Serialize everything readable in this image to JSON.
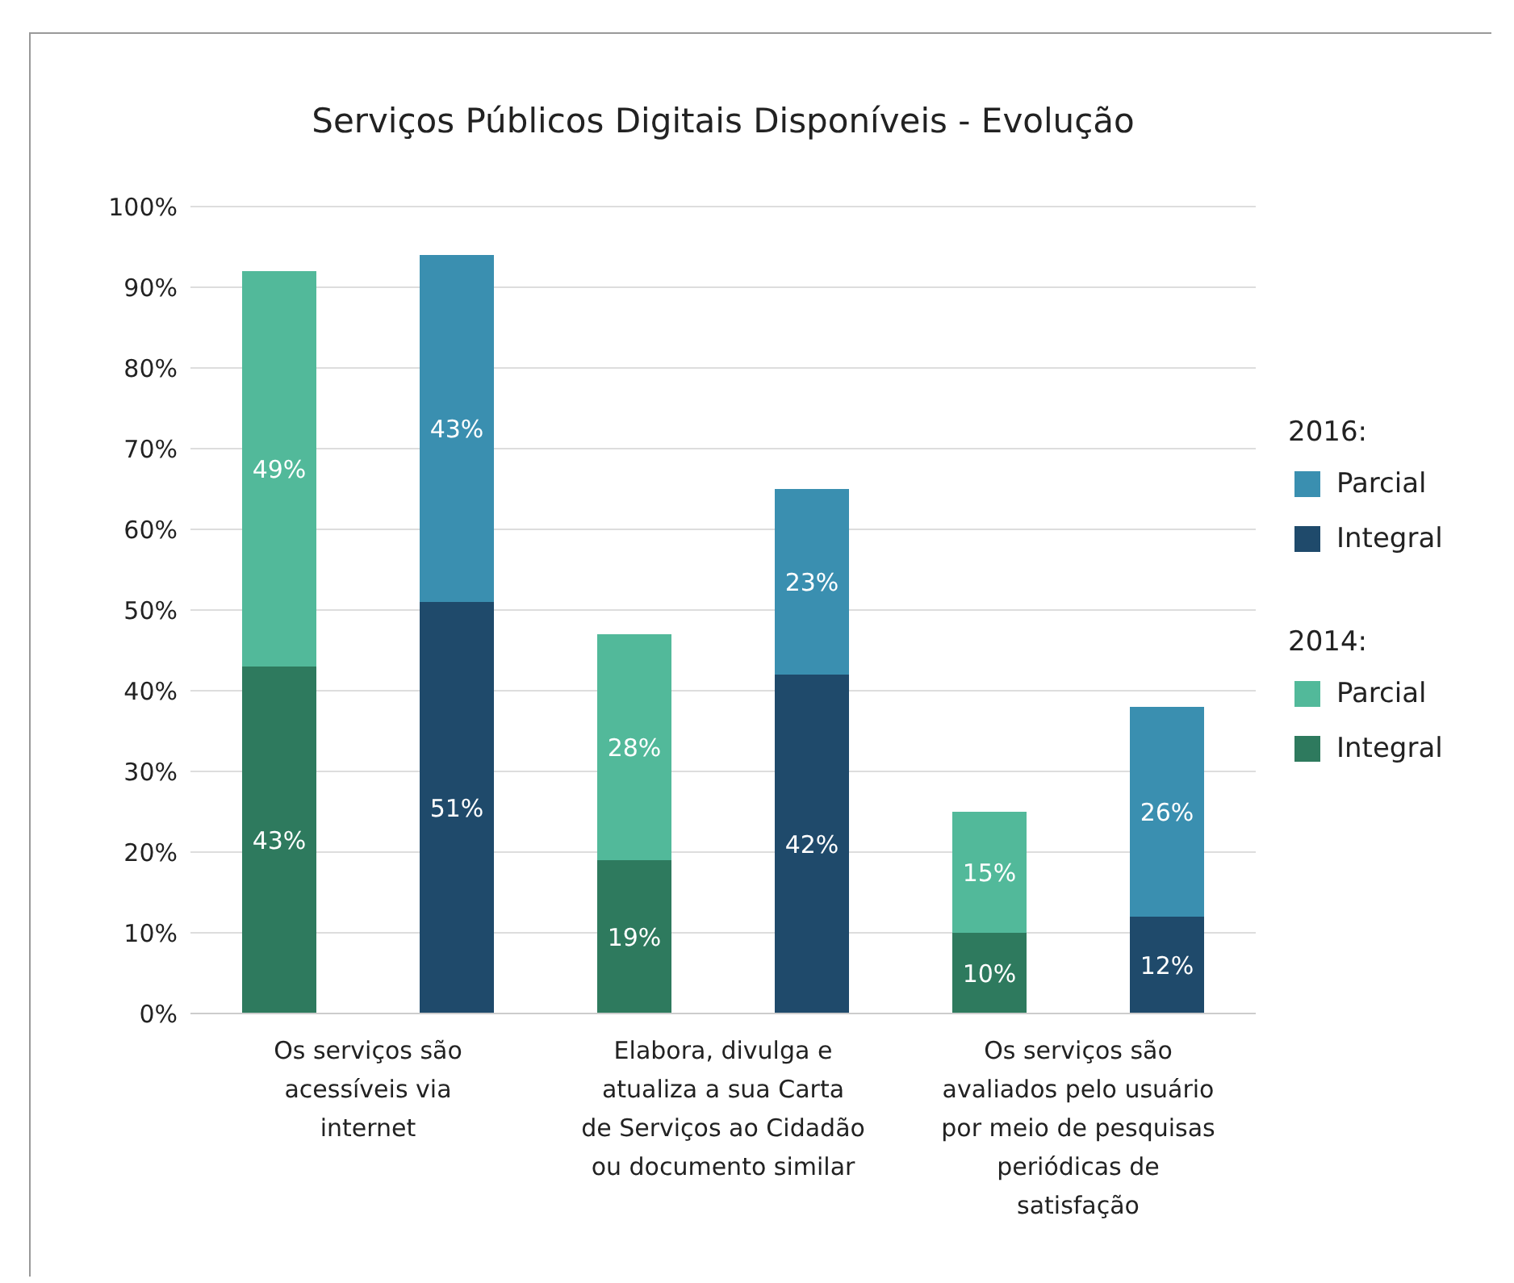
{
  "chart_data": {
    "type": "bar",
    "title": "Serviços Públicos Digitais Disponíveis - Evolução",
    "categories": [
      "Os serviços são acessíveis via internet",
      null,
      "Elabora, divulga e atualiza a sua Carta de Serviços ao Cidadão ou documento similar",
      null,
      "Os serviços são avaliados pelo usuário por meio de pesquisas periódicas de satisfação",
      null
    ],
    "series": [
      {
        "name": "Integral",
        "color": "#2e7a5e",
        "values": [
          43,
          null,
          19,
          null,
          10,
          null
        ],
        "value_labels": [
          "43%",
          null,
          "19%",
          null,
          "10%",
          null
        ]
      },
      {
        "name": "Parcial",
        "color": "#52b99a",
        "values": [
          49,
          null,
          28,
          null,
          15,
          null
        ],
        "value_labels": [
          "49%",
          null,
          "28%",
          null,
          "15%",
          null
        ]
      },
      {
        "name": "Integral",
        "color": "#1f4a6b",
        "values": [
          null,
          51,
          null,
          42,
          null,
          12
        ],
        "value_labels": [
          null,
          "51%",
          null,
          "42%",
          null,
          "12%"
        ]
      },
      {
        "name": "Parcial",
        "color": "#3a8fb0",
        "values": [
          null,
          43,
          null,
          23,
          null,
          26
        ],
        "value_labels": [
          null,
          "43%",
          null,
          "23%",
          null,
          "26%"
        ]
      }
    ],
    "annotations": [
      "2014:",
      "2016:"
    ],
    "stacked": true,
    "ylim": [
      0,
      100
    ],
    "yticks": [
      {
        "value": 0,
        "label": "0%"
      },
      {
        "value": 10,
        "label": "10%"
      },
      {
        "value": 20,
        "label": "20%"
      },
      {
        "value": 30,
        "label": "30%"
      },
      {
        "value": 40,
        "label": "40%"
      },
      {
        "value": 50,
        "label": "50%"
      },
      {
        "value": 60,
        "label": "60%"
      },
      {
        "value": 70,
        "label": "70%"
      },
      {
        "value": 80,
        "label": "80%"
      },
      {
        "value": 90,
        "label": "90%"
      },
      {
        "value": 100,
        "label": "100%"
      }
    ],
    "grid": "y",
    "legend": "right"
  }
}
